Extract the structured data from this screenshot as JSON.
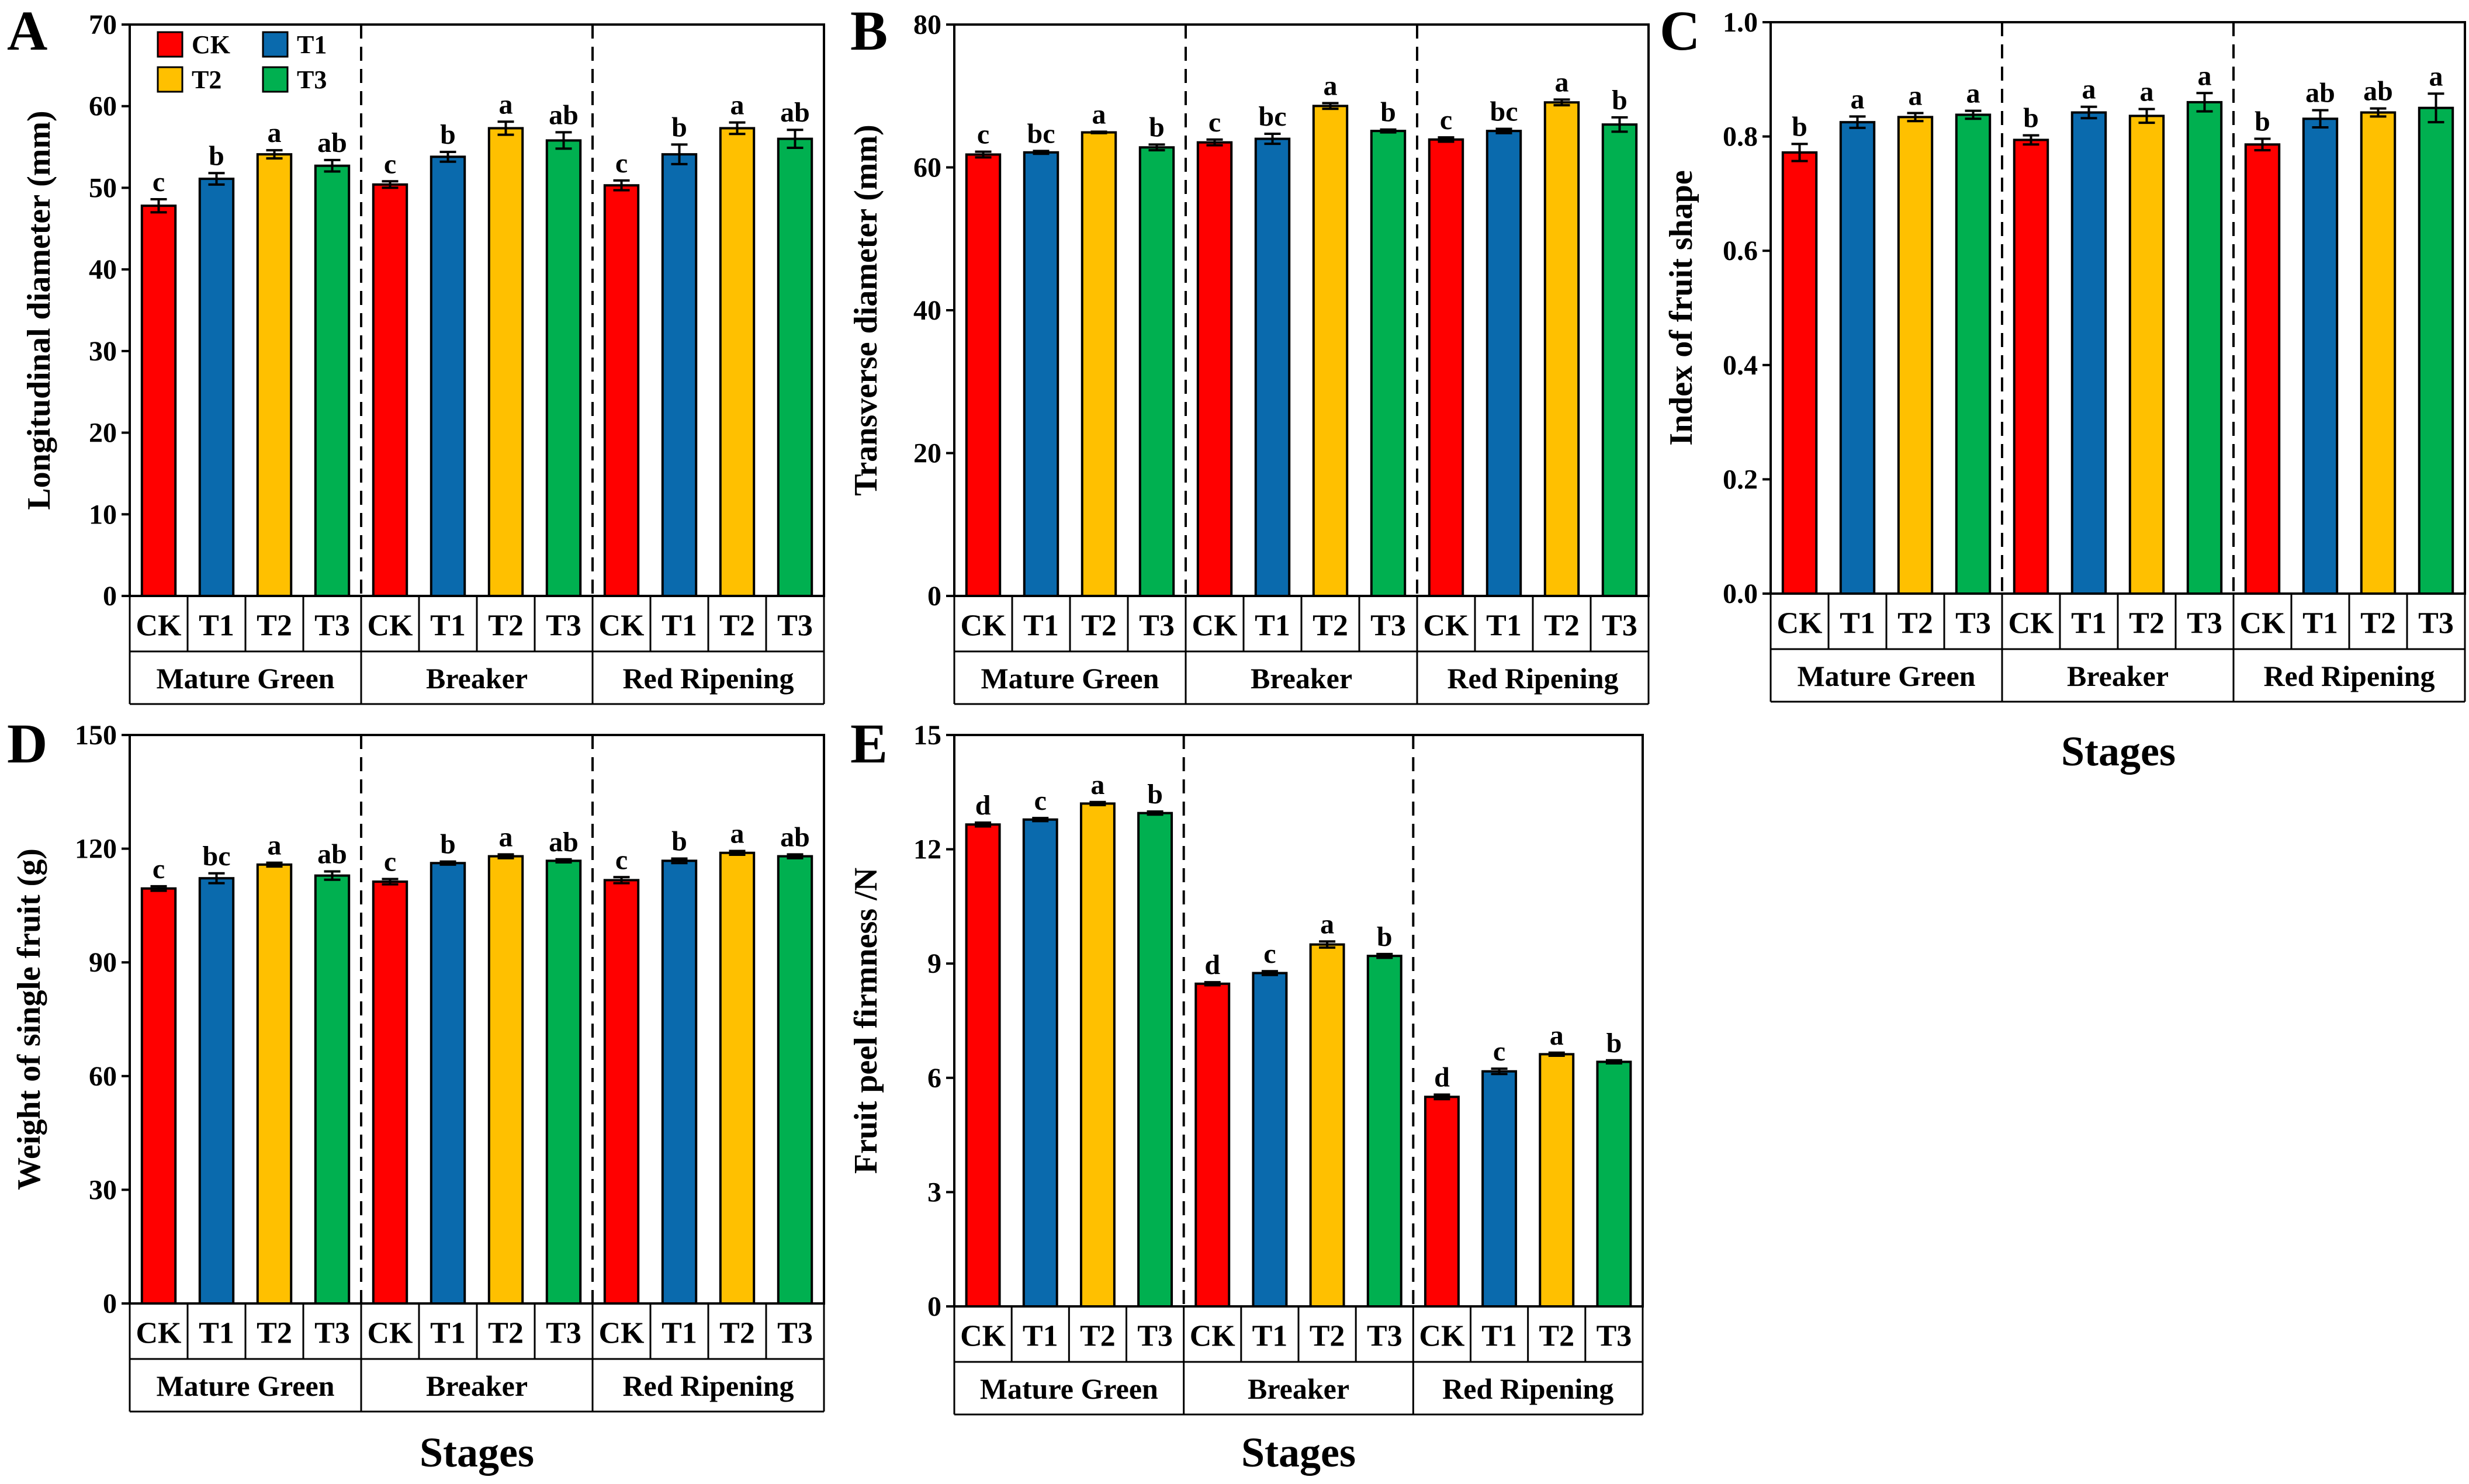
{
  "colors": {
    "CK": "#ff0000",
    "T1": "#0a6aad",
    "T2": "#ffc000",
    "T3": "#00b050"
  },
  "legend": [
    {
      "name": "CK",
      "label": "CK"
    },
    {
      "name": "T1",
      "label": "T1"
    },
    {
      "name": "T2",
      "label": "T2"
    },
    {
      "name": "T3",
      "label": "T3"
    }
  ],
  "xlabel": "Stages",
  "chart_data": [
    {
      "type": "bar",
      "letter": "A",
      "ylabel": "Longitudinal  diameter (mm)",
      "stages": [
        "Mature Green",
        "Breaker",
        "Red Ripening"
      ],
      "treatments": [
        "CK",
        "T1",
        "T2",
        "T3"
      ],
      "ylim": [
        0,
        70
      ],
      "yticks": [
        0,
        10,
        20,
        30,
        40,
        50,
        60,
        70
      ],
      "values": [
        [
          47.8,
          51.1,
          54.1,
          52.7
        ],
        [
          50.4,
          53.8,
          57.3,
          55.8
        ],
        [
          50.3,
          54.1,
          57.3,
          56.0
        ]
      ],
      "errors": [
        [
          0.8,
          0.7,
          0.5,
          0.7
        ],
        [
          0.4,
          0.6,
          0.8,
          1.0
        ],
        [
          0.6,
          1.2,
          0.7,
          1.1
        ]
      ],
      "letters": [
        [
          "c",
          "b",
          "a",
          "ab"
        ],
        [
          "c",
          "b",
          "a",
          "ab"
        ],
        [
          "c",
          "b",
          "a",
          "ab"
        ]
      ],
      "show_xlabel": false
    },
    {
      "type": "bar",
      "letter": "B",
      "ylabel": "Transverse diameter (mm)",
      "stages": [
        "Mature Green",
        "Breaker",
        "Red Ripening"
      ],
      "treatments": [
        "CK",
        "T1",
        "T2",
        "T3"
      ],
      "ylim": [
        0,
        80
      ],
      "yticks": [
        0,
        20,
        40,
        60,
        80
      ],
      "values": [
        [
          61.8,
          62.1,
          64.9,
          62.8
        ],
        [
          63.5,
          64.0,
          68.6,
          65.1
        ],
        [
          63.9,
          65.1,
          69.1,
          66.0
        ]
      ],
      "errors": [
        [
          0.4,
          0.2,
          0.1,
          0.4
        ],
        [
          0.4,
          0.7,
          0.4,
          0.2
        ],
        [
          0.3,
          0.3,
          0.4,
          1.0
        ]
      ],
      "letters": [
        [
          "c",
          "bc",
          "a",
          "b"
        ],
        [
          "c",
          "bc",
          "a",
          "b"
        ],
        [
          "c",
          "bc",
          "a",
          "b"
        ]
      ],
      "show_xlabel": false
    },
    {
      "type": "bar",
      "letter": "C",
      "ylabel": "Index of fruit shape",
      "stages": [
        "Mature Green",
        "Breaker",
        "Red Ripening"
      ],
      "treatments": [
        "CK",
        "T1",
        "T2",
        "T3"
      ],
      "ylim": [
        0,
        1.0
      ],
      "yticks": [
        0.0,
        0.2,
        0.4,
        0.6,
        0.8,
        1.0
      ],
      "ytick_labels": [
        "0.0",
        "0.2",
        "0.4",
        "0.6",
        "0.8",
        "1.0"
      ],
      "values": [
        [
          0.772,
          0.825,
          0.834,
          0.838
        ],
        [
          0.794,
          0.842,
          0.836,
          0.86
        ],
        [
          0.786,
          0.831,
          0.842,
          0.85
        ]
      ],
      "errors": [
        [
          0.015,
          0.01,
          0.007,
          0.007
        ],
        [
          0.008,
          0.01,
          0.012,
          0.016
        ],
        [
          0.01,
          0.015,
          0.007,
          0.025
        ]
      ],
      "letters": [
        [
          "b",
          "a",
          "a",
          "a"
        ],
        [
          "b",
          "a",
          "a",
          "a"
        ],
        [
          "b",
          "ab",
          "ab",
          "a"
        ]
      ],
      "show_xlabel": true
    },
    {
      "type": "bar",
      "letter": "D",
      "ylabel": "Weight of single fruit (g)",
      "stages": [
        "Mature Green",
        "Breaker",
        "Red Ripening"
      ],
      "treatments": [
        "CK",
        "T1",
        "T2",
        "T3"
      ],
      "ylim": [
        0,
        150
      ],
      "yticks": [
        0,
        30,
        60,
        90,
        120,
        150
      ],
      "values": [
        [
          109.5,
          112.2,
          115.8,
          112.9
        ],
        [
          111.3,
          116.2,
          118.0,
          116.8
        ],
        [
          111.7,
          116.8,
          118.9,
          118.0
        ]
      ],
      "errors": [
        [
          0.6,
          1.3,
          0.5,
          1.1
        ],
        [
          0.7,
          0.4,
          0.5,
          0.4
        ],
        [
          0.8,
          0.6,
          0.5,
          0.5
        ]
      ],
      "letters": [
        [
          "c",
          "bc",
          "a",
          "ab"
        ],
        [
          "c",
          "b",
          "a",
          "ab"
        ],
        [
          "c",
          "b",
          "a",
          "ab"
        ]
      ],
      "show_xlabel": true
    },
    {
      "type": "bar",
      "letter": "E",
      "ylabel": "Fruit peel firmness /N",
      "stages": [
        "Mature Green",
        "Breaker",
        "Red Ripening"
      ],
      "treatments": [
        "CK",
        "T1",
        "T2",
        "T3"
      ],
      "ylim": [
        0,
        15
      ],
      "yticks": [
        0,
        3,
        6,
        9,
        12,
        15
      ],
      "values": [
        [
          12.65,
          12.78,
          13.2,
          12.95
        ],
        [
          8.47,
          8.75,
          9.5,
          9.2
        ],
        [
          5.5,
          6.17,
          6.62,
          6.42
        ]
      ],
      "errors": [
        [
          0.05,
          0.04,
          0.04,
          0.04
        ],
        [
          0.04,
          0.05,
          0.08,
          0.05
        ],
        [
          0.06,
          0.07,
          0.04,
          0.04
        ]
      ],
      "letters": [
        [
          "d",
          "c",
          "a",
          "b"
        ],
        [
          "d",
          "c",
          "a",
          "b"
        ],
        [
          "d",
          "c",
          "a",
          "b"
        ]
      ],
      "show_xlabel": true
    }
  ]
}
